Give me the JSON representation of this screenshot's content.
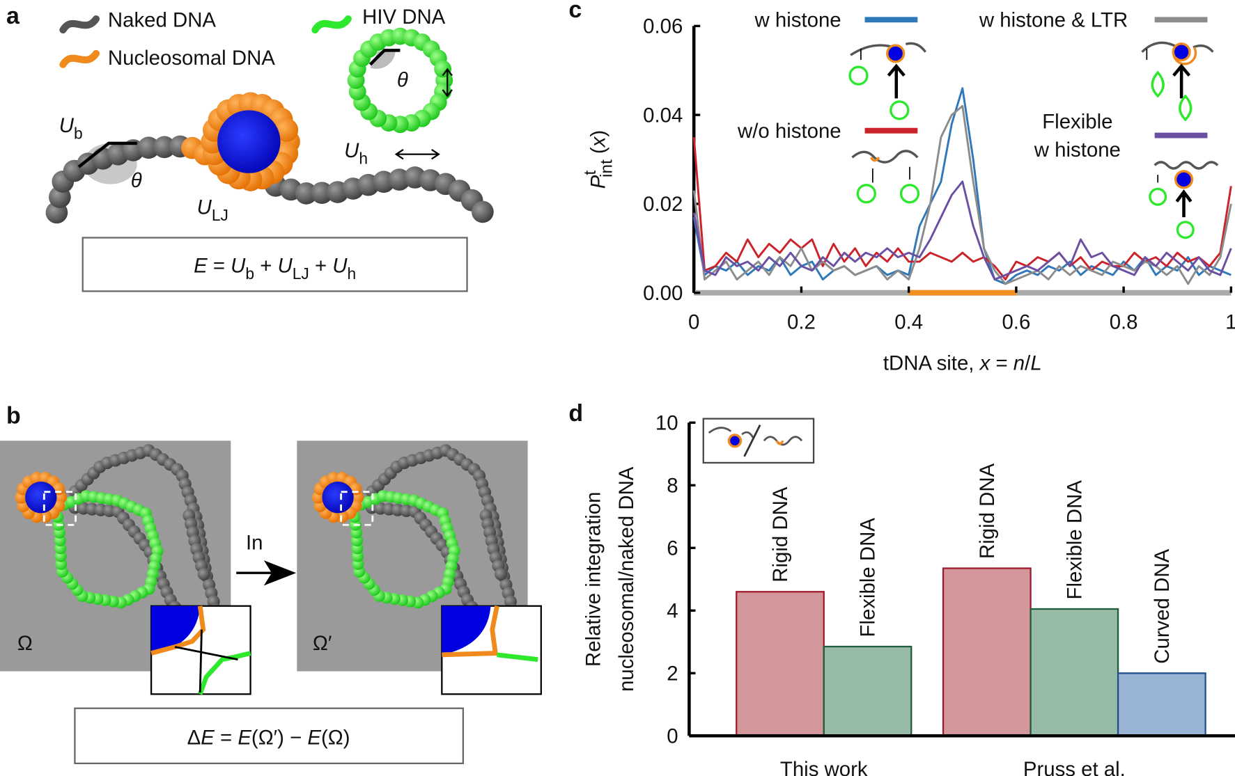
{
  "diagrams": {
    "a": {
      "panel": "a",
      "legend": [
        "Naked DNA",
        "Nucleosomal DNA",
        "HIV DNA"
      ],
      "labels": {
        "Ub": [
          {
            "text": "U",
            "italic": true
          },
          {
            "text": "b",
            "sub": true
          }
        ],
        "theta1": "θ",
        "ULJ": [
          {
            "text": "U",
            "italic": true
          },
          {
            "text": "LJ",
            "sub": true
          }
        ],
        "Uh": [
          {
            "text": "U",
            "italic": true
          },
          {
            "text": "h",
            "sub": true
          }
        ],
        "theta2": "θ"
      },
      "equation": [
        {
          "text": "E",
          "italic": true
        },
        {
          "text": " = "
        },
        {
          "text": "U",
          "italic": true
        },
        {
          "text": "b",
          "sub": true
        },
        {
          "text": " + "
        },
        {
          "text": "U",
          "italic": true
        },
        {
          "text": "LJ",
          "sub": true
        },
        {
          "text": " + "
        },
        {
          "text": "U",
          "italic": true
        },
        {
          "text": "h",
          "sub": true
        }
      ]
    },
    "b": {
      "panel": "b",
      "arrow_label": "In",
      "state1": "Ω",
      "state2": "Ω′",
      "equation": [
        {
          "text": "Δ"
        },
        {
          "text": "E",
          "italic": true
        },
        {
          "text": " = "
        },
        {
          "text": "E",
          "italic": true
        },
        {
          "text": "(Ω′) − "
        },
        {
          "text": "E",
          "italic": true
        },
        {
          "text": "(Ω)"
        }
      ]
    }
  },
  "chart_data": [
    {
      "type": "line",
      "panel": "c",
      "ylabel": [
        {
          "text": "P",
          "italic": true
        },
        {
          "text": "t",
          "sup": true
        },
        {
          "text": "int",
          "sub": true
        },
        {
          "text": " ("
        },
        {
          "text": "x",
          "italic": true
        },
        {
          "text": ")"
        }
      ],
      "xlabel": [
        {
          "text": "tDNA site, "
        },
        {
          "text": "x",
          "italic": true
        },
        {
          "text": " = "
        },
        {
          "text": "n",
          "italic": true
        },
        {
          "text": "/"
        },
        {
          "text": "L",
          "italic": true
        }
      ],
      "xlim": [
        0,
        1
      ],
      "xticks": [
        0,
        0.2,
        0.4,
        0.6,
        0.8,
        1
      ],
      "ylim": [
        0,
        0.06
      ],
      "yticks": [
        {
          "value": 0,
          "label": "0.00"
        },
        0.02,
        0.04,
        0.06
      ],
      "highlight": {
        "range": [
          0.4,
          0.6
        ],
        "color": "#f39020"
      },
      "x": [
        0,
        0.02,
        0.04,
        0.06,
        0.08,
        0.1,
        0.12,
        0.14,
        0.16,
        0.18,
        0.2,
        0.22,
        0.24,
        0.26,
        0.28,
        0.3,
        0.32,
        0.34,
        0.36,
        0.38,
        0.4,
        0.42,
        0.44,
        0.46,
        0.48,
        0.5,
        0.52,
        0.54,
        0.56,
        0.58,
        0.6,
        0.62,
        0.64,
        0.66,
        0.68,
        0.7,
        0.72,
        0.74,
        0.76,
        0.78,
        0.8,
        0.82,
        0.84,
        0.86,
        0.88,
        0.9,
        0.92,
        0.94,
        0.96,
        0.98,
        1
      ],
      "series": [
        {
          "name": "w histone",
          "color": "#2f78b9",
          "values": [
            0.017,
            0.004,
            0.006,
            0.005,
            0.007,
            0.004,
            0.006,
            0.005,
            0.008,
            0.004,
            0.006,
            0.007,
            0.003,
            0.005,
            0.006,
            0.004,
            0.005,
            0.006,
            0.004,
            0.005,
            0.004,
            0.015,
            0.02,
            0.025,
            0.038,
            0.046,
            0.03,
            0.01,
            0.003,
            0.002,
            0.004,
            0.005,
            0.004,
            0.006,
            0.005,
            0.007,
            0.004,
            0.006,
            0.005,
            0.004,
            0.007,
            0.005,
            0.008,
            0.004,
            0.006,
            0.005,
            0.008,
            0.004,
            0.006,
            0.005,
            0.004
          ]
        },
        {
          "name": "w/o histone",
          "color": "#cc2229",
          "values": [
            0.035,
            0.005,
            0.006,
            0.009,
            0.007,
            0.012,
            0.008,
            0.011,
            0.009,
            0.012,
            0.01,
            0.012,
            0.006,
            0.011,
            0.007,
            0.01,
            0.006,
            0.009,
            0.007,
            0.01,
            0.007,
            0.007,
            0.009,
            0.008,
            0.007,
            0.009,
            0.007,
            0.008,
            0.006,
            0.003,
            0.007,
            0.006,
            0.008,
            0.007,
            0.009,
            0.006,
            0.008,
            0.005,
            0.007,
            0.006,
            0.006,
            0.009,
            0.007,
            0.008,
            0.006,
            0.009,
            0.007,
            0.008,
            0.006,
            0.009,
            0.024
          ]
        },
        {
          "name": "w histone & LTR",
          "color": "#8c8c8c",
          "values": [
            0.023,
            0.003,
            0.005,
            0.007,
            0.003,
            0.005,
            0.007,
            0.004,
            0.008,
            0.006,
            0.01,
            0.005,
            0.007,
            0.005,
            0.006,
            0.004,
            0.005,
            0.006,
            0.003,
            0.005,
            0.003,
            0.01,
            0.02,
            0.035,
            0.04,
            0.042,
            0.025,
            0.01,
            0.005,
            0.002,
            0.003,
            0.004,
            0.005,
            0.003,
            0.006,
            0.004,
            0.006,
            0.005,
            0.004,
            0.007,
            0.006,
            0.005,
            0.007,
            0.006,
            0.004,
            0.006,
            0.002,
            0.006,
            0.004,
            0.008,
            0.02
          ]
        },
        {
          "name": "Flexible\nw histone",
          "color": "#6a4fa3",
          "values": [
            0.018,
            0.005,
            0.004,
            0.008,
            0.006,
            0.007,
            0.005,
            0.008,
            0.006,
            0.009,
            0.006,
            0.005,
            0.008,
            0.006,
            0.009,
            0.007,
            0.009,
            0.008,
            0.01,
            0.008,
            0.009,
            0.008,
            0.012,
            0.017,
            0.022,
            0.025,
            0.015,
            0.008,
            0.003,
            0.004,
            0.005,
            0.006,
            0.005,
            0.007,
            0.009,
            0.006,
            0.012,
            0.008,
            0.009,
            0.006,
            0.005,
            0.004,
            0.008,
            0.006,
            0.009,
            0.007,
            0.005,
            0.008,
            0.005,
            0.004,
            0.01
          ]
        }
      ]
    },
    {
      "type": "grouped_bar",
      "panel": "d",
      "ylabel": [
        "Relative integration",
        "nucleosomal/naked DNA"
      ],
      "ylim": [
        0,
        10
      ],
      "yticks": [
        0,
        2,
        4,
        6,
        8,
        10
      ],
      "groups": [
        {
          "name": "This work",
          "bars": [
            {
              "label": "Rigid DNA",
              "value": 4.6,
              "color": "#d4979b",
              "edge": "#a0192a"
            },
            {
              "label": "Flexible DNA",
              "value": 2.85,
              "color": "#98bba8",
              "edge": "#1f5a3c"
            }
          ]
        },
        {
          "name": "Pruss et al.",
          "bars": [
            {
              "label": "Rigid DNA",
              "value": 5.35,
              "color": "#d4979b",
              "edge": "#a0192a"
            },
            {
              "label": "Flexible DNA",
              "value": 4.05,
              "color": "#98bba8",
              "edge": "#1f5a3c"
            },
            {
              "label": "Curved DNA",
              "value": 2.0,
              "color": "#98b3d3",
              "edge": "#1f4f8f"
            }
          ]
        }
      ]
    }
  ]
}
